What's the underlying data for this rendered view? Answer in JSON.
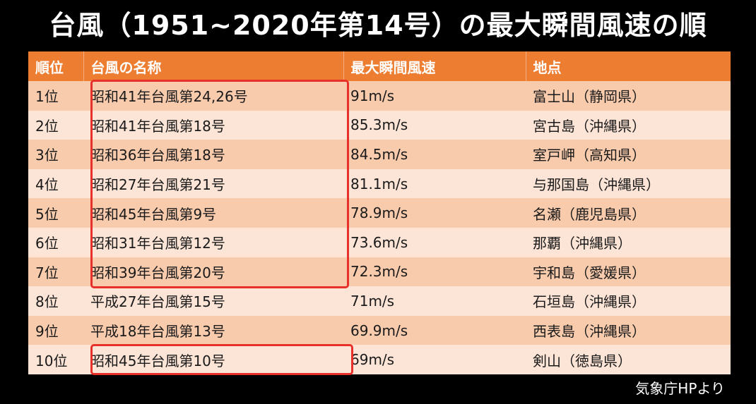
{
  "title": "台風（1951~2020年第14号）の最大瞬間風速の順",
  "table": {
    "headers": [
      "順位",
      "台風の名称",
      "最大瞬間風速",
      "地点"
    ],
    "rows": [
      {
        "rank": "1位",
        "name": "昭和41年台風第24,26号",
        "speed": "91m/s",
        "place": "富士山（静岡県）"
      },
      {
        "rank": "2位",
        "name": "昭和41年台風第18号",
        "speed": "85.3m/s",
        "place": "宮古島（沖縄県）"
      },
      {
        "rank": "3位",
        "name": "昭和36年台風第18号",
        "speed": "84.5m/s",
        "place": "室戸岬（高知県）"
      },
      {
        "rank": "4位",
        "name": "昭和27年台風第21号",
        "speed": "81.1m/s",
        "place": "与那国島（沖縄県）"
      },
      {
        "rank": "5位",
        "name": "昭和45年台風第9号",
        "speed": "78.9m/s",
        "place": "名瀬（鹿児島県）"
      },
      {
        "rank": "6位",
        "name": "昭和31年台風第12号",
        "speed": "73.6m/s",
        "place": "那覇（沖縄県）"
      },
      {
        "rank": "7位",
        "name": "昭和39年台風第20号",
        "speed": "72.3m/s",
        "place": "宇和島（愛媛県）"
      },
      {
        "rank": "8位",
        "name": "平成27年台風第15号",
        "speed": "71m/s",
        "place": "石垣島（沖縄県）"
      },
      {
        "rank": "9位",
        "name": "平成18年台風第13号",
        "speed": "69.9m/s",
        "place": "西表島（沖縄県）"
      },
      {
        "rank": "10位",
        "name": "昭和45年台風第10号",
        "speed": "69m/s",
        "place": "剣山（徳島県）"
      }
    ]
  },
  "source": "気象庁HPより",
  "colors": {
    "header_bg": "#ed7d31",
    "row_odd_bg": "#f8cbad",
    "row_even_bg": "#fce4d6",
    "highlight_border": "#e8302a"
  }
}
